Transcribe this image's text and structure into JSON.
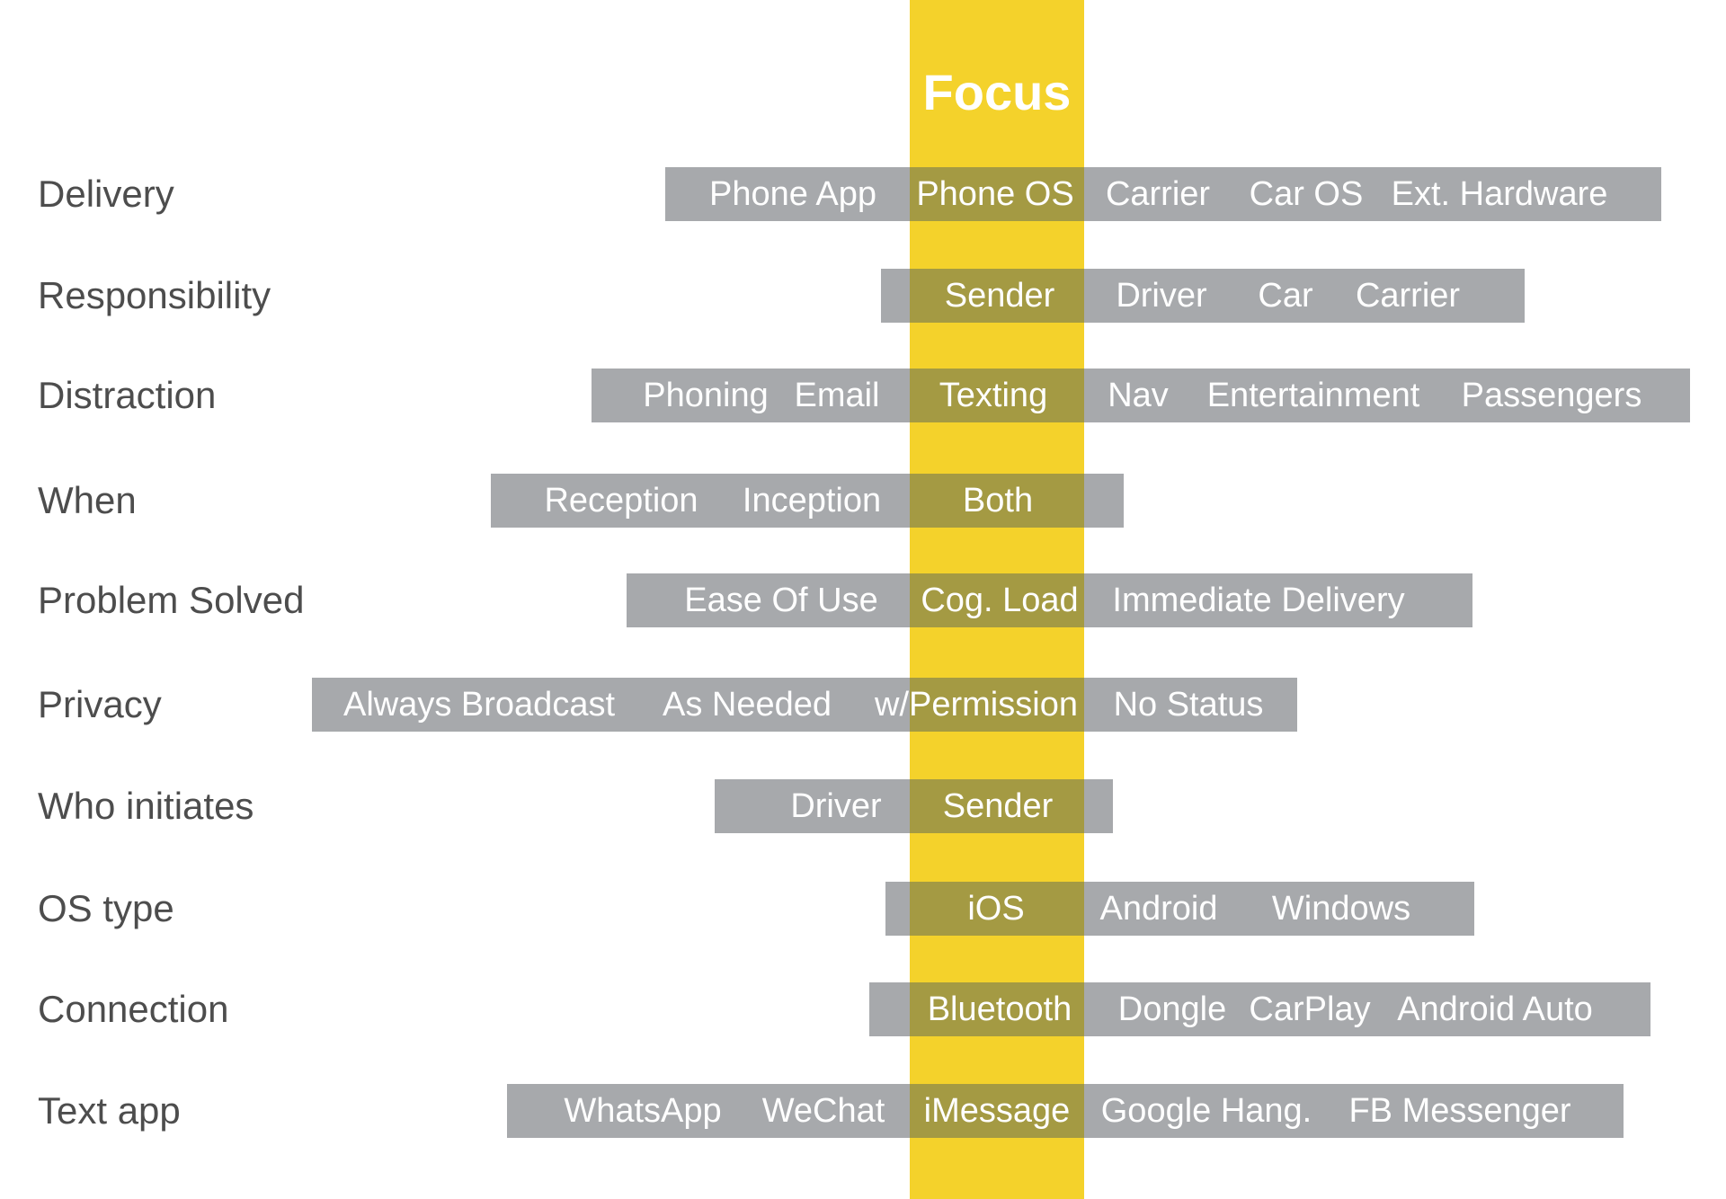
{
  "focus": {
    "title": "Focus",
    "color": "#f4d22b"
  },
  "colors": {
    "bar": "#a7a9ac",
    "overlap": "#a49a43",
    "label": "#4d4d4d",
    "option_text": "#ffffff"
  },
  "rows": [
    {
      "label": "Delivery",
      "options": [
        "Phone App",
        "Phone OS",
        "Carrier",
        "Car OS",
        "Ext. Hardware"
      ],
      "focused": "Phone OS"
    },
    {
      "label": "Responsibility",
      "options": [
        "Sender",
        "Driver",
        "Car",
        "Carrier"
      ],
      "focused": "Sender"
    },
    {
      "label": "Distraction",
      "options": [
        "Phoning",
        "Email",
        "Texting",
        "Nav",
        "Entertainment",
        "Passengers"
      ],
      "focused": "Texting"
    },
    {
      "label": "When",
      "options": [
        "Reception",
        "Inception",
        "Both"
      ],
      "focused": "Both"
    },
    {
      "label": "Problem Solved",
      "options": [
        "Ease Of Use",
        "Cog. Load",
        "Immediate Delivery"
      ],
      "focused": "Cog. Load"
    },
    {
      "label": "Privacy",
      "options": [
        "Always Broadcast",
        "As Needed",
        "w/Permission",
        "No Status"
      ],
      "focused": "w/Permission"
    },
    {
      "label": "Who initiates",
      "options": [
        "Driver",
        "Sender"
      ],
      "focused": "Sender"
    },
    {
      "label": "OS type",
      "options": [
        "iOS",
        "Android",
        "Windows"
      ],
      "focused": "iOS"
    },
    {
      "label": "Connection",
      "options": [
        "Bluetooth",
        "Dongle",
        "CarPlay",
        "Android Auto"
      ],
      "focused": "Bluetooth"
    },
    {
      "label": "Text app",
      "options": [
        "WhatsApp",
        "WeChat",
        "iMessage",
        "Google Hang.",
        "FB Messenger"
      ],
      "focused": "iMessage"
    }
  ]
}
